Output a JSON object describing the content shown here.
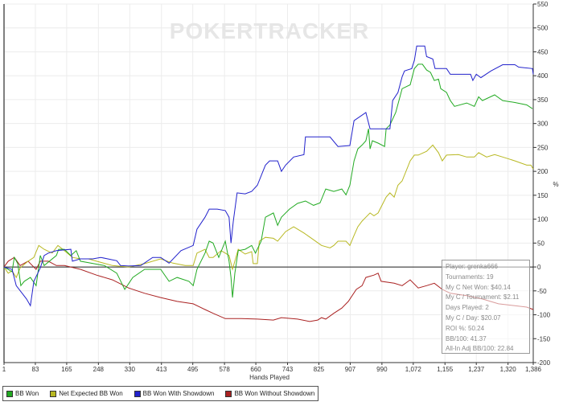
{
  "watermark": "POKERTRACKER",
  "chart_data": {
    "type": "line",
    "xlabel": "Hands Played",
    "ylabel": "%",
    "xlim": [
      1,
      1386
    ],
    "ylim": [
      -200,
      550
    ],
    "x_ticks": [
      1,
      83,
      165,
      248,
      330,
      413,
      495,
      578,
      660,
      743,
      825,
      907,
      990,
      1072,
      1155,
      1237,
      1320,
      1386
    ],
    "x_tick_labels": [
      "1",
      "83",
      "165",
      "248",
      "330",
      "413",
      "495",
      "578",
      "660",
      "743",
      "825",
      "907",
      "990",
      "1,072",
      "1,155",
      "1,237",
      "1,320",
      "1,386"
    ],
    "y_ticks": [
      -200,
      -150,
      -100,
      -50,
      0,
      50,
      100,
      150,
      200,
      250,
      300,
      350,
      400,
      450,
      500,
      550
    ],
    "y_axis_position": "right",
    "grid": true,
    "legend_position": "bottom-left",
    "series": [
      {
        "name": "BB Won",
        "color": "#22aa22",
        "points": [
          [
            1,
            0
          ],
          [
            22,
            -10
          ],
          [
            28,
            20
          ],
          [
            37,
            7
          ],
          [
            45,
            -39
          ],
          [
            54,
            -30
          ],
          [
            70,
            -22
          ],
          [
            85,
            -39
          ],
          [
            96,
            24
          ],
          [
            106,
            3
          ],
          [
            138,
            24
          ],
          [
            144,
            37
          ],
          [
            159,
            37
          ],
          [
            176,
            24
          ],
          [
            190,
            34
          ],
          [
            201,
            12
          ],
          [
            264,
            3
          ],
          [
            296,
            -13
          ],
          [
            317,
            -47
          ],
          [
            338,
            -22
          ],
          [
            369,
            -5
          ],
          [
            411,
            -5
          ],
          [
            433,
            -30
          ],
          [
            454,
            -22
          ],
          [
            485,
            -30
          ],
          [
            496,
            -39
          ],
          [
            506,
            -5
          ],
          [
            527,
            29
          ],
          [
            538,
            54
          ],
          [
            548,
            50
          ],
          [
            563,
            20
          ],
          [
            580,
            54
          ],
          [
            590,
            12
          ],
          [
            595,
            -22
          ],
          [
            599,
            -64
          ],
          [
            605,
            -13
          ],
          [
            614,
            34
          ],
          [
            632,
            37
          ],
          [
            649,
            45
          ],
          [
            659,
            29
          ],
          [
            674,
            54
          ],
          [
            685,
            104
          ],
          [
            706,
            113
          ],
          [
            717,
            87
          ],
          [
            727,
            104
          ],
          [
            748,
            121
          ],
          [
            769,
            133
          ],
          [
            790,
            138
          ],
          [
            811,
            129
          ],
          [
            828,
            134
          ],
          [
            843,
            163
          ],
          [
            864,
            158
          ],
          [
            885,
            163
          ],
          [
            896,
            151
          ],
          [
            906,
            171
          ],
          [
            917,
            222
          ],
          [
            927,
            247
          ],
          [
            938,
            255
          ],
          [
            948,
            264
          ],
          [
            955,
            289
          ],
          [
            959,
            247
          ],
          [
            965,
            264
          ],
          [
            980,
            259
          ],
          [
            997,
            252
          ],
          [
            1001,
            289
          ],
          [
            1011,
            297
          ],
          [
            1026,
            323
          ],
          [
            1043,
            373
          ],
          [
            1064,
            381
          ],
          [
            1075,
            415
          ],
          [
            1085,
            424
          ],
          [
            1096,
            424
          ],
          [
            1107,
            412
          ],
          [
            1117,
            407
          ],
          [
            1127,
            390
          ],
          [
            1138,
            393
          ],
          [
            1144,
            373
          ],
          [
            1159,
            365
          ],
          [
            1169,
            348
          ],
          [
            1180,
            336
          ],
          [
            1212,
            343
          ],
          [
            1232,
            336
          ],
          [
            1243,
            356
          ],
          [
            1253,
            348
          ],
          [
            1285,
            360
          ],
          [
            1306,
            348
          ],
          [
            1338,
            344
          ],
          [
            1369,
            339
          ],
          [
            1384,
            331
          ]
        ]
      },
      {
        "name": "Net Expected BB Won",
        "color": "#b8b822",
        "points": [
          [
            1,
            0
          ],
          [
            12,
            -13
          ],
          [
            22,
            -8
          ],
          [
            33,
            -22
          ],
          [
            43,
            -2
          ],
          [
            64,
            12
          ],
          [
            79,
            20
          ],
          [
            92,
            45
          ],
          [
            106,
            37
          ],
          [
            127,
            29
          ],
          [
            142,
            45
          ],
          [
            159,
            34
          ],
          [
            180,
            20
          ],
          [
            201,
            17
          ],
          [
            222,
            17
          ],
          [
            243,
            12
          ],
          [
            285,
            3
          ],
          [
            327,
            0
          ],
          [
            369,
            7
          ],
          [
            411,
            17
          ],
          [
            443,
            8
          ],
          [
            475,
            3
          ],
          [
            496,
            3
          ],
          [
            506,
            29
          ],
          [
            527,
            37
          ],
          [
            538,
            20
          ],
          [
            548,
            20
          ],
          [
            569,
            34
          ],
          [
            580,
            29
          ],
          [
            590,
            24
          ],
          [
            599,
            -5
          ],
          [
            605,
            12
          ],
          [
            614,
            37
          ],
          [
            632,
            27
          ],
          [
            649,
            32
          ],
          [
            653,
            7
          ],
          [
            664,
            7
          ],
          [
            669,
            54
          ],
          [
            685,
            62
          ],
          [
            706,
            60
          ],
          [
            717,
            54
          ],
          [
            738,
            74
          ],
          [
            759,
            84
          ],
          [
            786,
            71
          ],
          [
            811,
            57
          ],
          [
            832,
            45
          ],
          [
            854,
            40
          ],
          [
            864,
            45
          ],
          [
            875,
            54
          ],
          [
            896,
            54
          ],
          [
            906,
            45
          ],
          [
            917,
            66
          ],
          [
            927,
            84
          ],
          [
            938,
            96
          ],
          [
            948,
            104
          ],
          [
            959,
            113
          ],
          [
            969,
            107
          ],
          [
            980,
            113
          ],
          [
            990,
            129
          ],
          [
            1001,
            146
          ],
          [
            1011,
            155
          ],
          [
            1022,
            146
          ],
          [
            1032,
            171
          ],
          [
            1043,
            180
          ],
          [
            1064,
            222
          ],
          [
            1075,
            234
          ],
          [
            1085,
            234
          ],
          [
            1107,
            242
          ],
          [
            1123,
            255
          ],
          [
            1138,
            239
          ],
          [
            1148,
            222
          ],
          [
            1159,
            234
          ],
          [
            1190,
            235
          ],
          [
            1212,
            230
          ],
          [
            1232,
            230
          ],
          [
            1243,
            239
          ],
          [
            1264,
            230
          ],
          [
            1285,
            235
          ],
          [
            1306,
            230
          ],
          [
            1338,
            222
          ],
          [
            1369,
            213
          ],
          [
            1380,
            213
          ],
          [
            1386,
            205
          ]
        ]
      },
      {
        "name": "BB Won With Showdown",
        "color": "#2222cc",
        "points": [
          [
            1,
            0
          ],
          [
            22,
            -5
          ],
          [
            33,
            -39
          ],
          [
            60,
            -67
          ],
          [
            70,
            -81
          ],
          [
            79,
            -30
          ],
          [
            96,
            -2
          ],
          [
            106,
            24
          ],
          [
            117,
            29
          ],
          [
            138,
            34
          ],
          [
            176,
            37
          ],
          [
            180,
            12
          ],
          [
            201,
            17
          ],
          [
            233,
            17
          ],
          [
            254,
            20
          ],
          [
            296,
            13
          ],
          [
            306,
            3
          ],
          [
            327,
            2
          ],
          [
            359,
            3
          ],
          [
            390,
            20
          ],
          [
            411,
            20
          ],
          [
            433,
            8
          ],
          [
            464,
            34
          ],
          [
            496,
            45
          ],
          [
            506,
            79
          ],
          [
            527,
            104
          ],
          [
            538,
            121
          ],
          [
            559,
            121
          ],
          [
            580,
            118
          ],
          [
            590,
            104
          ],
          [
            595,
            50
          ],
          [
            601,
            96
          ],
          [
            611,
            155
          ],
          [
            632,
            153
          ],
          [
            649,
            158
          ],
          [
            664,
            171
          ],
          [
            685,
            213
          ],
          [
            696,
            222
          ],
          [
            717,
            222
          ],
          [
            727,
            200
          ],
          [
            738,
            213
          ],
          [
            759,
            230
          ],
          [
            786,
            235
          ],
          [
            790,
            272
          ],
          [
            854,
            272
          ],
          [
            875,
            252
          ],
          [
            906,
            254
          ],
          [
            917,
            306
          ],
          [
            948,
            323
          ],
          [
            959,
            289
          ],
          [
            1011,
            289
          ],
          [
            1018,
            348
          ],
          [
            1032,
            365
          ],
          [
            1043,
            398
          ],
          [
            1049,
            410
          ],
          [
            1068,
            415
          ],
          [
            1075,
            432
          ],
          [
            1081,
            462
          ],
          [
            1102,
            462
          ],
          [
            1107,
            440
          ],
          [
            1123,
            435
          ],
          [
            1129,
            415
          ],
          [
            1159,
            415
          ],
          [
            1169,
            403
          ],
          [
            1222,
            403
          ],
          [
            1228,
            390
          ],
          [
            1237,
            403
          ],
          [
            1249,
            396
          ],
          [
            1275,
            410
          ],
          [
            1306,
            423
          ],
          [
            1338,
            423
          ],
          [
            1348,
            418
          ],
          [
            1384,
            415
          ],
          [
            1386,
            403
          ]
        ]
      },
      {
        "name": "BB Won Without Showdown",
        "color": "#aa2222",
        "points": [
          [
            1,
            0
          ],
          [
            12,
            12
          ],
          [
            28,
            20
          ],
          [
            43,
            3
          ],
          [
            64,
            12
          ],
          [
            75,
            3
          ],
          [
            85,
            -5
          ],
          [
            96,
            12
          ],
          [
            117,
            12
          ],
          [
            138,
            3
          ],
          [
            159,
            3
          ],
          [
            201,
            -5
          ],
          [
            243,
            -17
          ],
          [
            285,
            -27
          ],
          [
            327,
            -44
          ],
          [
            369,
            -55
          ],
          [
            411,
            -64
          ],
          [
            454,
            -72
          ],
          [
            496,
            -77
          ],
          [
            527,
            -89
          ],
          [
            548,
            -97
          ],
          [
            580,
            -108
          ],
          [
            622,
            -108
          ],
          [
            664,
            -109
          ],
          [
            706,
            -111
          ],
          [
            727,
            -106
          ],
          [
            769,
            -109
          ],
          [
            801,
            -114
          ],
          [
            822,
            -111
          ],
          [
            832,
            -106
          ],
          [
            843,
            -109
          ],
          [
            864,
            -97
          ],
          [
            885,
            -86
          ],
          [
            902,
            -72
          ],
          [
            923,
            -47
          ],
          [
            938,
            -39
          ],
          [
            948,
            -22
          ],
          [
            969,
            -17
          ],
          [
            980,
            -13
          ],
          [
            988,
            -30
          ],
          [
            1022,
            -34
          ],
          [
            1043,
            -39
          ],
          [
            1064,
            -27
          ],
          [
            1085,
            -44
          ],
          [
            1107,
            -39
          ],
          [
            1127,
            -34
          ],
          [
            1148,
            -47
          ],
          [
            1169,
            -55
          ],
          [
            1212,
            -60
          ],
          [
            1253,
            -67
          ],
          [
            1295,
            -77
          ],
          [
            1338,
            -81
          ],
          [
            1369,
            -84
          ],
          [
            1386,
            -89
          ]
        ]
      }
    ]
  },
  "stats": {
    "player": "Player: grenka666",
    "tournaments": "Tournaments: 19",
    "net_won": "My C Net Won: $40.14",
    "per_tournament": "My C / Tournament: $2.11",
    "days_played": "Days Played: 2",
    "per_day": "My C / Day: $20.07",
    "roi": "ROI %: 50.24",
    "bb100": "BB/100: 41.37",
    "allin_bb100": "All-In Adj BB/100: 22.84"
  }
}
